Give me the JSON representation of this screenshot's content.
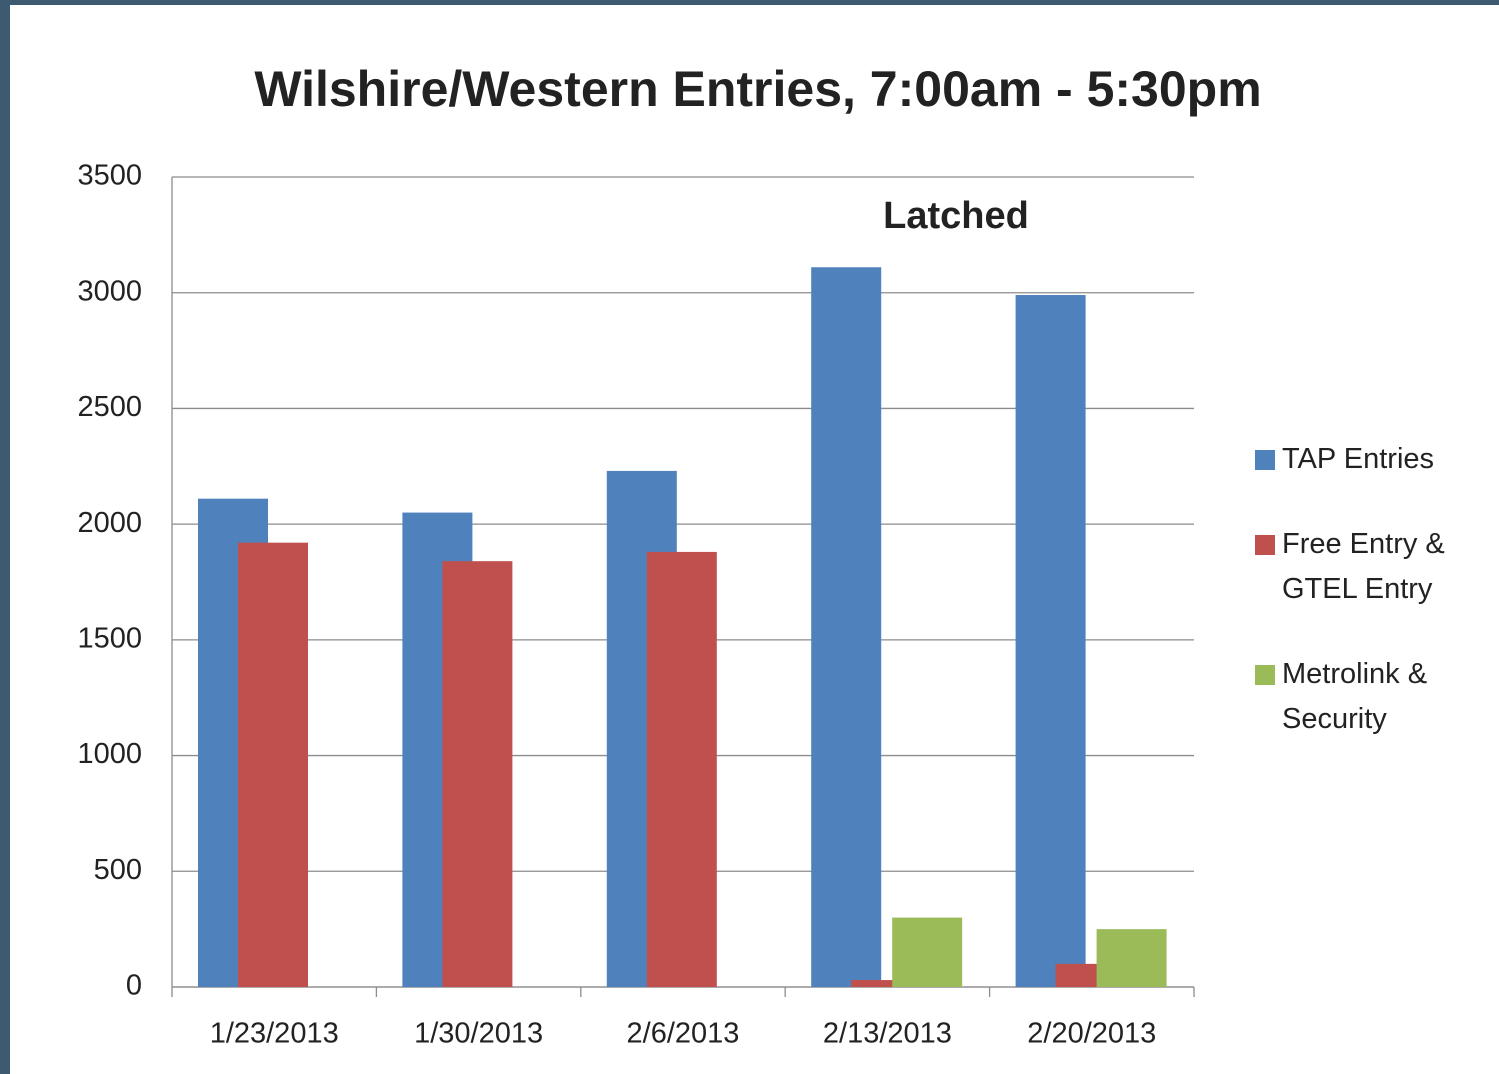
{
  "chart_data": {
    "type": "bar",
    "title": "Wilshire/Western Entries, 7:00am - 5:30pm",
    "annotation": "Latched",
    "categories": [
      "1/23/2013",
      "1/30/2013",
      "2/6/2013",
      "2/13/2013",
      "2/20/2013"
    ],
    "series": [
      {
        "name": "TAP Entries",
        "color": "#4f81bd",
        "values": [
          2110,
          2050,
          2230,
          3110,
          2990
        ]
      },
      {
        "name": "Free Entry & GTEL Entry",
        "color": "#c0504d",
        "values": [
          1920,
          1840,
          1880,
          30,
          100
        ]
      },
      {
        "name": "Metrolink & Security",
        "color": "#9bbb59",
        "values": [
          0,
          0,
          0,
          300,
          250
        ]
      }
    ],
    "ylim": [
      0,
      3500
    ],
    "yticks": [
      0,
      500,
      1000,
      1500,
      2000,
      2500,
      3000,
      3500
    ],
    "grid": true,
    "legend": "right"
  }
}
